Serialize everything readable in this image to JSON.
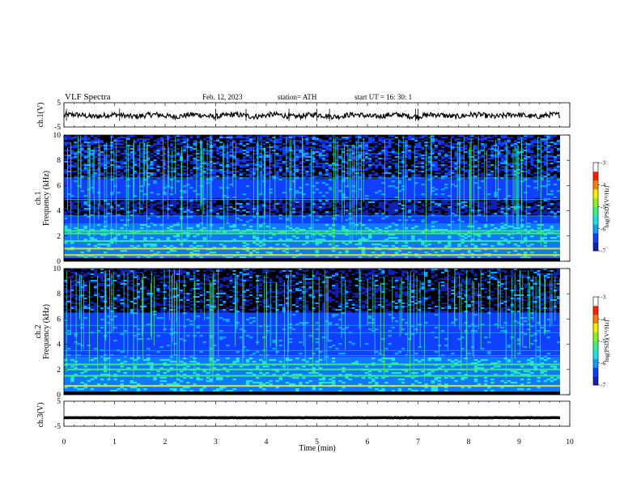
{
  "header": {
    "title": "VLF  Spectra",
    "date": "Feb. 12, 2023",
    "station": "station= ATH",
    "start": "start  UT  =    16: 30: 1"
  },
  "chart_data": [
    {
      "type": "line",
      "panel": "ch1-waveform",
      "ylabel": "ch.1(V)",
      "ylim": [
        -5,
        5
      ],
      "yticks": [
        "5",
        "-5"
      ],
      "baseline": -0.3,
      "color": "#000000"
    },
    {
      "type": "heatmap",
      "panel": "ch1-spectrogram",
      "ylabel": "ch.1\nFrequency (kHz)",
      "ylim": [
        0,
        10
      ],
      "yticks": [
        "0",
        "2",
        "4",
        "6",
        "8",
        "10"
      ],
      "xlim": [
        0,
        10
      ],
      "bands_khz": [
        0.5,
        1.0,
        1.6,
        2.2,
        2.4,
        3.6,
        4.9,
        6.6
      ],
      "dark_band_khz": [
        3.6,
        5.0
      ],
      "colorbar": {
        "label": "log(PSD)(V²/Hz)",
        "range": [
          -7,
          -3
        ],
        "ticks": [
          "-3",
          "-4",
          "-5",
          "-6",
          "-7"
        ]
      }
    },
    {
      "type": "heatmap",
      "panel": "ch2-spectrogram",
      "ylabel": "ch.2\nFrequency (kHz)",
      "ylim": [
        0,
        10
      ],
      "yticks": [
        "0",
        "2",
        "4",
        "6",
        "8",
        "10"
      ],
      "xlim": [
        0,
        10
      ],
      "bands_khz": [
        0.7,
        1.5,
        2.0,
        2.4,
        3.1,
        3.5,
        4.9,
        5.5
      ],
      "dark_band_khz": [
        6.5,
        10
      ],
      "colorbar": {
        "label": "log(PSD)(V²/Hz)",
        "range": [
          -7,
          -3
        ],
        "ticks": [
          "-3",
          "-4",
          "-5",
          "-6",
          "-7"
        ]
      }
    },
    {
      "type": "line",
      "panel": "ch3-waveform",
      "ylabel": "ch.3(V)",
      "ylim": [
        -5,
        5
      ],
      "yticks": [
        "5",
        "-5"
      ],
      "baseline": -1.6,
      "color": "#000000"
    }
  ],
  "xaxis": {
    "label": "Time  (min)",
    "range": [
      0,
      10
    ],
    "ticks": [
      "0",
      "1",
      "2",
      "3",
      "4",
      "5",
      "6",
      "7",
      "8",
      "9",
      "10"
    ]
  },
  "colormap": [
    "#000000",
    "#1020b0",
    "#1040ff",
    "#10a0ff",
    "#20e0e0",
    "#40f080",
    "#90f020",
    "#f0f000",
    "#ff8000",
    "#ff2000",
    "#ffffff"
  ]
}
